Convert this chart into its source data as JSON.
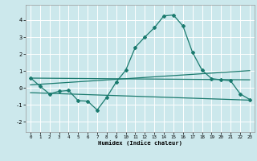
{
  "xlabel": "Humidex (Indice chaleur)",
  "bg_color": "#cce8ec",
  "grid_color": "#ffffff",
  "line_color": "#1a7a6e",
  "xlim": [
    -0.5,
    23.5
  ],
  "ylim": [
    -2.6,
    4.9
  ],
  "x_ticks": [
    0,
    1,
    2,
    3,
    4,
    5,
    6,
    7,
    8,
    9,
    10,
    11,
    12,
    13,
    14,
    15,
    16,
    17,
    18,
    19,
    20,
    21,
    22,
    23
  ],
  "y_ticks": [
    -2,
    -1,
    0,
    1,
    2,
    3,
    4
  ],
  "series1_x": [
    0,
    1,
    2,
    3,
    4,
    5,
    6,
    7,
    8,
    9,
    10,
    11,
    12,
    13,
    14,
    15,
    16,
    17,
    18,
    19,
    20,
    21,
    22,
    23
  ],
  "series1_y": [
    0.6,
    0.1,
    -0.35,
    -0.2,
    -0.15,
    -0.75,
    -0.78,
    -1.3,
    -0.55,
    0.35,
    1.05,
    2.4,
    3.0,
    3.55,
    4.25,
    4.3,
    3.65,
    2.1,
    1.05,
    0.55,
    0.48,
    0.42,
    -0.35,
    -0.68
  ],
  "series2_x": [
    0,
    23
  ],
  "series2_y": [
    0.58,
    0.48
  ],
  "series3_x": [
    0,
    23
  ],
  "series3_y": [
    0.18,
    1.02
  ],
  "series4_x": [
    0,
    23
  ],
  "series4_y": [
    -0.28,
    -0.72
  ]
}
